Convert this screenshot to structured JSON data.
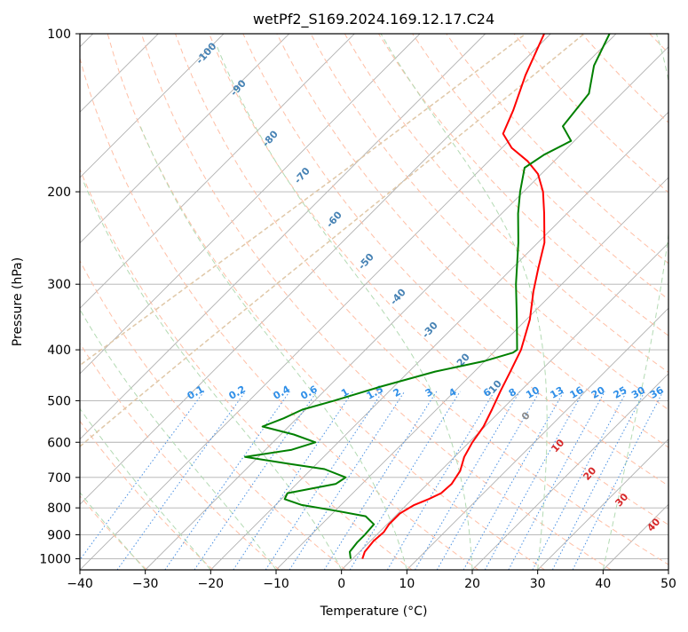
{
  "chart_data": {
    "type": "line",
    "diagram": "skew-T log-P",
    "title": "wetPf2_S169.2024.169.12.17.C24",
    "xlabel": "Temperature (°C)",
    "ylabel": "Pressure (hPa)",
    "xlim": [
      -40,
      50
    ],
    "ylim": [
      1050,
      100
    ],
    "y_scale": "log",
    "grid": true,
    "x_ticks": [
      -40,
      -30,
      -20,
      -10,
      0,
      10,
      20,
      30,
      40,
      50
    ],
    "x_tick_labels": [
      "−40",
      "−30",
      "−20",
      "−10",
      "0",
      "10",
      "20",
      "30",
      "40",
      "50"
    ],
    "y_ticks": [
      100,
      200,
      300,
      400,
      500,
      600,
      700,
      800,
      900,
      1000
    ],
    "y_tick_labels": [
      "100",
      "200",
      "300",
      "400",
      "500",
      "600",
      "700",
      "800",
      "900",
      "1000"
    ],
    "colors": {
      "temperature": "#ff0000",
      "dewpoint": "#008000",
      "dry_adiabat": "#ffbfa6",
      "moist_adiabat": "#b3dab3",
      "mixing_ratio": "#4a90e2",
      "wet_bulb": "#4682b4",
      "frost_line": "#e0c8a8",
      "isotherm": "#b0b0b0"
    },
    "series": [
      {
        "key": "temperature",
        "points": [
          {
            "p": 1000,
            "t": 1.5
          },
          {
            "p": 970,
            "t": 0.8
          },
          {
            "p": 925,
            "t": 0.5
          },
          {
            "p": 890,
            "t": 0.7
          },
          {
            "p": 860,
            "t": 0.3
          },
          {
            "p": 820,
            "t": 0.3
          },
          {
            "p": 790,
            "t": 1.2
          },
          {
            "p": 770,
            "t": 2.5
          },
          {
            "p": 750,
            "t": 3.5
          },
          {
            "p": 720,
            "t": 3.7
          },
          {
            "p": 680,
            "t": 3.0
          },
          {
            "p": 640,
            "t": 1.5
          },
          {
            "p": 600,
            "t": 0.5
          },
          {
            "p": 560,
            "t": -0.2
          },
          {
            "p": 520,
            "t": -1.5
          },
          {
            "p": 480,
            "t": -3.0
          },
          {
            "p": 440,
            "t": -4.5
          },
          {
            "p": 400,
            "t": -6.2
          },
          {
            "p": 350,
            "t": -9.5
          },
          {
            "p": 310,
            "t": -13.2
          },
          {
            "p": 280,
            "t": -16.0
          },
          {
            "p": 250,
            "t": -19.0
          },
          {
            "p": 220,
            "t": -23.5
          },
          {
            "p": 200,
            "t": -27.0
          },
          {
            "p": 185,
            "t": -30.5
          },
          {
            "p": 175,
            "t": -34.0
          },
          {
            "p": 165,
            "t": -38.5
          },
          {
            "p": 155,
            "t": -42.0
          },
          {
            "p": 140,
            "t": -44.0
          },
          {
            "p": 120,
            "t": -47.5
          },
          {
            "p": 100,
            "t": -51.0
          }
        ]
      },
      {
        "key": "dewpoint",
        "points": [
          {
            "p": 1000,
            "t": -0.3
          },
          {
            "p": 970,
            "t": -1.5
          },
          {
            "p": 930,
            "t": -1.8
          },
          {
            "p": 900,
            "t": -1.8
          },
          {
            "p": 860,
            "t": -2.0
          },
          {
            "p": 830,
            "t": -4.5
          },
          {
            "p": 810,
            "t": -10.0
          },
          {
            "p": 790,
            "t": -16.0
          },
          {
            "p": 770,
            "t": -19.5
          },
          {
            "p": 750,
            "t": -20.0
          },
          {
            "p": 720,
            "t": -14.0
          },
          {
            "p": 700,
            "t": -13.5
          },
          {
            "p": 675,
            "t": -18.0
          },
          {
            "p": 660,
            "t": -24.0
          },
          {
            "p": 640,
            "t": -32.0
          },
          {
            "p": 620,
            "t": -26.0
          },
          {
            "p": 600,
            "t": -23.5
          },
          {
            "p": 580,
            "t": -28.0
          },
          {
            "p": 560,
            "t": -34.0
          },
          {
            "p": 540,
            "t": -32.0
          },
          {
            "p": 520,
            "t": -30.5
          },
          {
            "p": 500,
            "t": -27.0
          },
          {
            "p": 470,
            "t": -22.0
          },
          {
            "p": 440,
            "t": -16.0
          },
          {
            "p": 420,
            "t": -10.0
          },
          {
            "p": 405,
            "t": -7.0
          },
          {
            "p": 400,
            "t": -6.8
          },
          {
            "p": 350,
            "t": -11.5
          },
          {
            "p": 300,
            "t": -17.0
          },
          {
            "p": 250,
            "t": -23.0
          },
          {
            "p": 220,
            "t": -27.5
          },
          {
            "p": 200,
            "t": -30.5
          },
          {
            "p": 180,
            "t": -33.5
          },
          {
            "p": 170,
            "t": -32.5
          },
          {
            "p": 160,
            "t": -30.5
          },
          {
            "p": 150,
            "t": -34.0
          },
          {
            "p": 130,
            "t": -35.0
          },
          {
            "p": 115,
            "t": -38.5
          },
          {
            "p": 100,
            "t": -41.0
          }
        ]
      }
    ],
    "dry_adiabat_thetas_k": [
      200,
      210,
      220,
      230,
      240,
      250,
      260,
      270,
      280,
      290,
      300,
      310,
      320,
      330,
      340,
      350,
      360,
      370,
      380,
      390,
      400,
      420,
      440,
      460,
      480,
      500,
      520,
      540
    ],
    "moist_adiabat_start_temps_c": [
      -30,
      -20,
      -10,
      0,
      10,
      20,
      30,
      40
    ],
    "wet_bulb_labels": [
      {
        "text": "-100",
        "p": 110
      },
      {
        "text": "-90",
        "p": 128
      },
      {
        "text": "-80",
        "p": 160
      },
      {
        "text": "-70",
        "p": 188
      },
      {
        "text": "-60",
        "p": 228
      },
      {
        "text": "-50",
        "p": 274
      },
      {
        "text": "-40",
        "p": 320
      },
      {
        "text": "-30",
        "p": 370
      },
      {
        "text": "-20",
        "p": 425
      },
      {
        "text": "-10",
        "p": 478
      },
      {
        "text": "0",
        "p": 540
      },
      {
        "text": "10",
        "p": 615
      },
      {
        "text": "20",
        "p": 695
      },
      {
        "text": "30",
        "p": 780
      },
      {
        "text": "40",
        "p": 870
      }
    ],
    "mixing_ratio_g_per_kg": [
      0.1,
      0.2,
      0.4,
      0.6,
      1,
      1.5,
      2,
      3,
      4,
      6,
      8,
      10,
      13,
      16,
      20,
      25,
      30,
      36
    ],
    "mixing_ratio_labels": [
      "0.1",
      "0.2",
      "0.4",
      "0.6",
      "1",
      "1.5",
      "2",
      "3",
      "4",
      "6",
      "8",
      "10",
      "13",
      "16",
      "20",
      "25",
      "30",
      "36"
    ]
  }
}
